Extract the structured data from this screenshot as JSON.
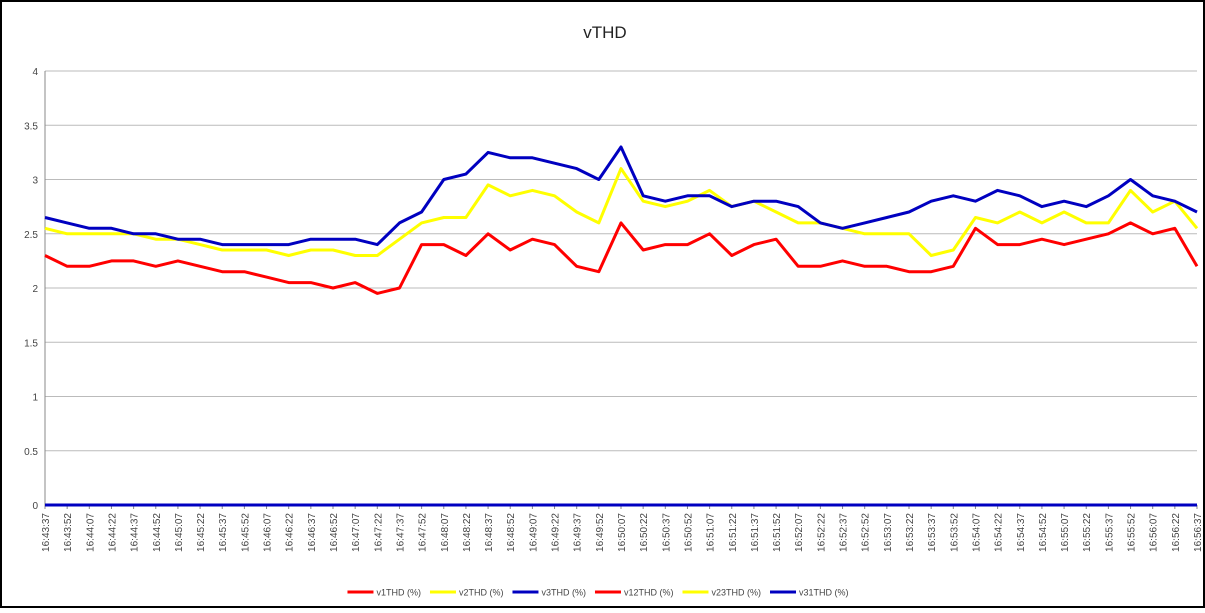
{
  "chart_data": {
    "type": "line",
    "title": "vTHD",
    "categories": [
      "16:43:37",
      "16:43:52",
      "16:44:07",
      "16:44:22",
      "16:44:37",
      "16:44:52",
      "16:45:07",
      "16:45:22",
      "16:45:37",
      "16:45:52",
      "16:46:07",
      "16:46:22",
      "16:46:37",
      "16:46:52",
      "16:47:07",
      "16:47:22",
      "16:47:37",
      "16:47:52",
      "16:48:07",
      "16:48:22",
      "16:48:37",
      "16:48:52",
      "16:49:07",
      "16:49:22",
      "16:49:37",
      "16:49:52",
      "16:50:07",
      "16:50:22",
      "16:50:37",
      "16:50:52",
      "16:51:07",
      "16:51:22",
      "16:51:37",
      "16:51:52",
      "16:52:07",
      "16:52:22",
      "16:52:37",
      "16:52:52",
      "16:53:07",
      "16:53:22",
      "16:53:37",
      "16:53:52",
      "16:54:07",
      "16:54:22",
      "16:54:37",
      "16:54:52",
      "16:55:07",
      "16:55:22",
      "16:55:37",
      "16:55:52",
      "16:56:07",
      "16:56:22",
      "16:56:37"
    ],
    "series": [
      {
        "name": "v1THD (%)",
        "color": "#ff0000",
        "values": [
          2.3,
          2.2,
          2.2,
          2.25,
          2.25,
          2.2,
          2.25,
          2.2,
          2.15,
          2.15,
          2.1,
          2.05,
          2.05,
          2.0,
          2.05,
          1.95,
          2.0,
          2.4,
          2.4,
          2.3,
          2.5,
          2.35,
          2.45,
          2.4,
          2.2,
          2.15,
          2.6,
          2.35,
          2.4,
          2.4,
          2.5,
          2.3,
          2.4,
          2.45,
          2.2,
          2.2,
          2.25,
          2.2,
          2.2,
          2.15,
          2.15,
          2.2,
          2.55,
          2.4,
          2.4,
          2.45,
          2.4,
          2.45,
          2.5,
          2.6,
          2.5,
          2.55,
          2.2
        ]
      },
      {
        "name": "v2THD (%)",
        "color": "#ffff00",
        "values": [
          2.55,
          2.5,
          2.5,
          2.5,
          2.5,
          2.45,
          2.45,
          2.4,
          2.35,
          2.35,
          2.35,
          2.3,
          2.35,
          2.35,
          2.3,
          2.3,
          2.45,
          2.6,
          2.65,
          2.65,
          2.95,
          2.85,
          2.9,
          2.85,
          2.7,
          2.6,
          3.1,
          2.8,
          2.75,
          2.8,
          2.9,
          2.75,
          2.8,
          2.7,
          2.6,
          2.6,
          2.55,
          2.5,
          2.5,
          2.5,
          2.3,
          2.35,
          2.65,
          2.6,
          2.7,
          2.6,
          2.7,
          2.6,
          2.6,
          2.9,
          2.7,
          2.8,
          2.55
        ]
      },
      {
        "name": "v3THD (%)",
        "color": "#0000c0",
        "values": [
          2.65,
          2.6,
          2.55,
          2.55,
          2.5,
          2.5,
          2.45,
          2.45,
          2.4,
          2.4,
          2.4,
          2.4,
          2.45,
          2.45,
          2.45,
          2.4,
          2.6,
          2.7,
          3.0,
          3.05,
          3.25,
          3.2,
          3.2,
          3.15,
          3.1,
          3.0,
          3.3,
          2.85,
          2.8,
          2.85,
          2.85,
          2.75,
          2.8,
          2.8,
          2.75,
          2.6,
          2.55,
          2.6,
          2.65,
          2.7,
          2.8,
          2.85,
          2.8,
          2.9,
          2.85,
          2.75,
          2.8,
          2.75,
          2.85,
          3.0,
          2.85,
          2.8,
          2.7
        ]
      },
      {
        "name": "v12THD (%)",
        "color": "#ff0000",
        "values": [
          0,
          0,
          0,
          0,
          0,
          0,
          0,
          0,
          0,
          0,
          0,
          0,
          0,
          0,
          0,
          0,
          0,
          0,
          0,
          0,
          0,
          0,
          0,
          0,
          0,
          0,
          0,
          0,
          0,
          0,
          0,
          0,
          0,
          0,
          0,
          0,
          0,
          0,
          0,
          0,
          0,
          0,
          0,
          0,
          0,
          0,
          0,
          0,
          0,
          0,
          0,
          0,
          0
        ]
      },
      {
        "name": "v23THD (%)",
        "color": "#ffff00",
        "values": [
          0,
          0,
          0,
          0,
          0,
          0,
          0,
          0,
          0,
          0,
          0,
          0,
          0,
          0,
          0,
          0,
          0,
          0,
          0,
          0,
          0,
          0,
          0,
          0,
          0,
          0,
          0,
          0,
          0,
          0,
          0,
          0,
          0,
          0,
          0,
          0,
          0,
          0,
          0,
          0,
          0,
          0,
          0,
          0,
          0,
          0,
          0,
          0,
          0,
          0,
          0,
          0,
          0
        ]
      },
      {
        "name": "v31THD (%)",
        "color": "#0000c0",
        "values": [
          0,
          0,
          0,
          0,
          0,
          0,
          0,
          0,
          0,
          0,
          0,
          0,
          0,
          0,
          0,
          0,
          0,
          0,
          0,
          0,
          0,
          0,
          0,
          0,
          0,
          0,
          0,
          0,
          0,
          0,
          0,
          0,
          0,
          0,
          0,
          0,
          0,
          0,
          0,
          0,
          0,
          0,
          0,
          0,
          0,
          0,
          0,
          0,
          0,
          0,
          0,
          0,
          0
        ]
      }
    ],
    "ylim": [
      0,
      4
    ],
    "yticks": [
      0,
      0.5,
      1,
      1.5,
      2,
      2.5,
      3,
      3.5,
      4
    ],
    "grid": true,
    "legend": "bottom"
  }
}
